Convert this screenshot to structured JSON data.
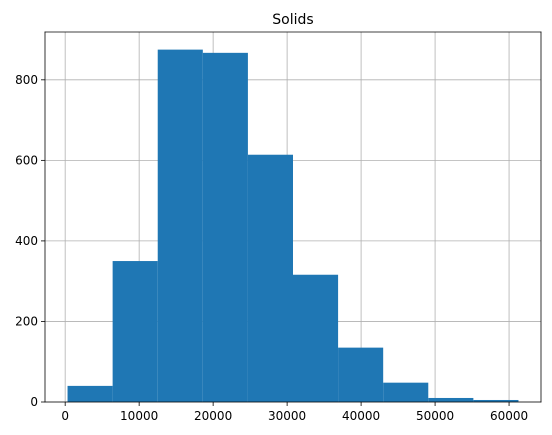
{
  "chart_data": {
    "type": "bar",
    "subtype": "histogram",
    "title": "Solids",
    "xlabel": "",
    "ylabel": "",
    "bins": [
      {
        "start": 320,
        "end": 6415,
        "count": 40
      },
      {
        "start": 6415,
        "end": 12510,
        "count": 350
      },
      {
        "start": 12510,
        "end": 18605,
        "count": 875
      },
      {
        "start": 18605,
        "end": 24700,
        "count": 867
      },
      {
        "start": 24700,
        "end": 30795,
        "count": 614
      },
      {
        "start": 30795,
        "end": 36890,
        "count": 316
      },
      {
        "start": 36890,
        "end": 42985,
        "count": 135
      },
      {
        "start": 42985,
        "end": 49080,
        "count": 48
      },
      {
        "start": 49080,
        "end": 55175,
        "count": 10
      },
      {
        "start": 55175,
        "end": 61270,
        "count": 5
      }
    ],
    "xlim": [
      -2727,
      64317
    ],
    "ylim": [
      0,
      918.75
    ],
    "xticks": [
      0,
      10000,
      20000,
      30000,
      40000,
      50000,
      60000
    ],
    "xtick_labels": [
      "0",
      "10000",
      "20000",
      "30000",
      "40000",
      "50000",
      "60000"
    ],
    "yticks": [
      0,
      200,
      400,
      600,
      800
    ],
    "ytick_labels": [
      "0",
      "200",
      "400",
      "600",
      "800"
    ],
    "grid": true,
    "colors": {
      "bar": "#1f77b4",
      "grid": "#b0b0b0",
      "axis": "#000000"
    }
  }
}
